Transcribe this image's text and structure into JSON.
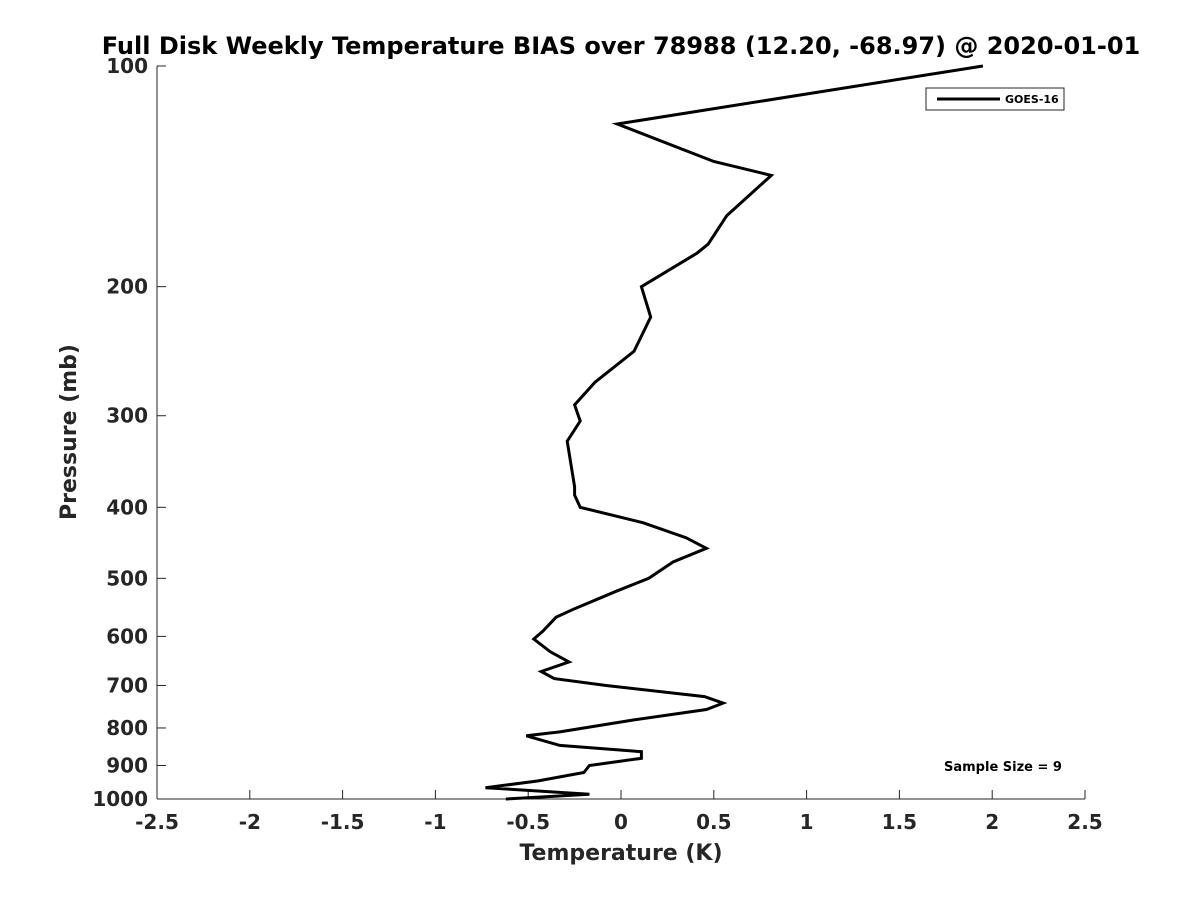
{
  "chart_data": {
    "type": "line",
    "title": "Full Disk Weekly Temperature BIAS over 78988 (12.20, -68.97) @ 2020-01-01",
    "xlabel": "Temperature (K)",
    "ylabel": "Pressure (mb)",
    "xlim": [
      -2.5,
      2.5
    ],
    "ylim": [
      100,
      1000
    ],
    "y_scale": "log",
    "y_reversed": true,
    "grid": false,
    "legend_position": "top-right",
    "xticks": [
      -2.5,
      -2,
      -1.5,
      -1,
      -0.5,
      0,
      0.5,
      1,
      1.5,
      2,
      2.5
    ],
    "xtick_labels": [
      "-2.5",
      "-2",
      "-1.5",
      "-1",
      "-0.5",
      "0",
      "0.5",
      "1",
      "1.5",
      "2",
      "2.5"
    ],
    "yticks": [
      100,
      200,
      300,
      400,
      500,
      600,
      700,
      800,
      900,
      1000
    ],
    "ytick_labels": [
      "100",
      "200",
      "300",
      "400",
      "500",
      "600",
      "700",
      "800",
      "900",
      "1000"
    ],
    "series": [
      {
        "name": "GOES-16",
        "color": "#000000",
        "points": [
          {
            "x": 1.95,
            "y": 100
          },
          {
            "x": -0.02,
            "y": 120
          },
          {
            "x": 0.5,
            "y": 135
          },
          {
            "x": 0.81,
            "y": 141
          },
          {
            "x": 0.57,
            "y": 160
          },
          {
            "x": 0.47,
            "y": 175
          },
          {
            "x": 0.41,
            "y": 180
          },
          {
            "x": 0.11,
            "y": 200
          },
          {
            "x": 0.16,
            "y": 220
          },
          {
            "x": 0.07,
            "y": 245
          },
          {
            "x": -0.14,
            "y": 270
          },
          {
            "x": -0.25,
            "y": 290
          },
          {
            "x": -0.22,
            "y": 305
          },
          {
            "x": -0.29,
            "y": 325
          },
          {
            "x": -0.25,
            "y": 375
          },
          {
            "x": -0.25,
            "y": 385
          },
          {
            "x": -0.22,
            "y": 400
          },
          {
            "x": 0.12,
            "y": 420
          },
          {
            "x": 0.35,
            "y": 440
          },
          {
            "x": 0.46,
            "y": 455
          },
          {
            "x": 0.28,
            "y": 475
          },
          {
            "x": 0.15,
            "y": 500
          },
          {
            "x": -0.02,
            "y": 520
          },
          {
            "x": -0.25,
            "y": 550
          },
          {
            "x": -0.35,
            "y": 565
          },
          {
            "x": -0.42,
            "y": 590
          },
          {
            "x": -0.47,
            "y": 605
          },
          {
            "x": -0.38,
            "y": 630
          },
          {
            "x": -0.28,
            "y": 650
          },
          {
            "x": -0.43,
            "y": 670
          },
          {
            "x": -0.36,
            "y": 685
          },
          {
            "x": -0.08,
            "y": 700
          },
          {
            "x": 0.45,
            "y": 725
          },
          {
            "x": 0.55,
            "y": 740
          },
          {
            "x": 0.46,
            "y": 755
          },
          {
            "x": 0.07,
            "y": 780
          },
          {
            "x": -0.33,
            "y": 810
          },
          {
            "x": -0.51,
            "y": 820
          },
          {
            "x": -0.33,
            "y": 845
          },
          {
            "x": 0.11,
            "y": 862
          },
          {
            "x": 0.11,
            "y": 880
          },
          {
            "x": -0.17,
            "y": 900
          },
          {
            "x": -0.2,
            "y": 920
          },
          {
            "x": -0.45,
            "y": 945
          },
          {
            "x": -0.73,
            "y": 965
          },
          {
            "x": -0.17,
            "y": 985
          },
          {
            "x": -0.62,
            "y": 1000
          }
        ]
      }
    ],
    "annotations": [
      {
        "text": "Sample Size = 9"
      }
    ]
  }
}
